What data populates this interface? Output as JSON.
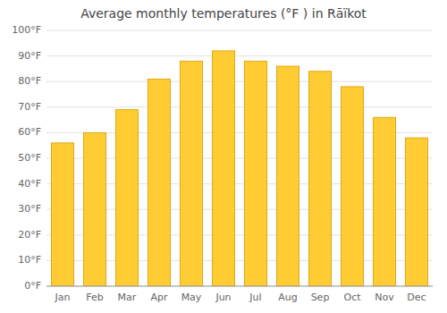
{
  "chart_data": {
    "type": "bar",
    "title": "Average monthly temperatures (°F ) in Rāïkot",
    "categories": [
      "Jan",
      "Feb",
      "Mar",
      "Apr",
      "May",
      "Jun",
      "Jul",
      "Aug",
      "Sep",
      "Oct",
      "Nov",
      "Dec"
    ],
    "values": [
      56,
      60,
      69,
      81,
      88,
      92,
      88,
      86,
      84,
      78,
      66,
      58
    ],
    "color": "#FFCC33",
    "ylim": [
      0,
      100
    ],
    "yticks": [
      {
        "value": 0,
        "label": "0°F"
      },
      {
        "value": 10,
        "label": "10°F"
      },
      {
        "value": 20,
        "label": "20°F"
      },
      {
        "value": 30,
        "label": "30°F"
      },
      {
        "value": 40,
        "label": "40°F"
      },
      {
        "value": 50,
        "label": "50°F"
      },
      {
        "value": 60,
        "label": "60°F"
      },
      {
        "value": 70,
        "label": "70°F"
      },
      {
        "value": 80,
        "label": "80°F"
      },
      {
        "value": 90,
        "label": "90°F"
      },
      {
        "value": 100,
        "label": "100°F"
      }
    ],
    "grid": true
  }
}
